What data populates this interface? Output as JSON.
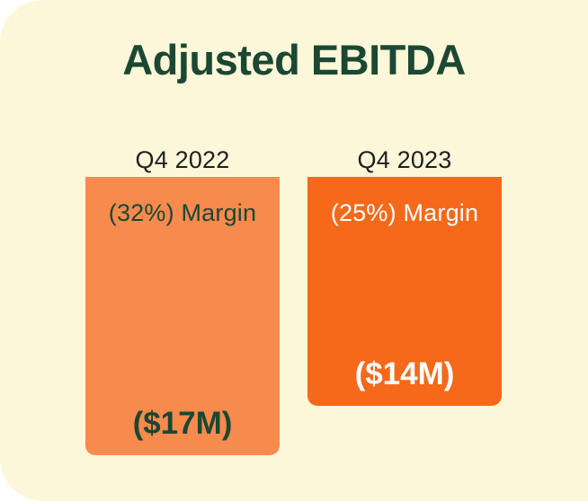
{
  "card": {
    "background_color": "#FCF7D9",
    "page_background_color": "#FFFFFF"
  },
  "chart_data": {
    "type": "bar",
    "title": "Adjusted EBITDA",
    "title_color": "#1B4733",
    "categories": [
      "Q4 2022",
      "Q4 2023"
    ],
    "series": [
      {
        "name": "Adjusted EBITDA ($M)",
        "values": [
          -17,
          -14
        ]
      }
    ],
    "margins_pct": [
      -32,
      -25
    ],
    "bar_labels": {
      "margin": [
        "(32%) Margin",
        "(25%) Margin"
      ],
      "value": [
        "($17M)",
        "($14M)"
      ]
    },
    "bar_colors": [
      "#F78A4D",
      "#F5691A"
    ],
    "bar_text_colors": [
      "#1B4733",
      "#FFFFFF"
    ],
    "category_label_color": "#1F1F1F",
    "orientation": "vertical-down",
    "layout_notes": "bars hang downward from a shared top baseline; bar length proportional to absolute value; parentheses denote negative values; no axes, grid off, no legend"
  }
}
